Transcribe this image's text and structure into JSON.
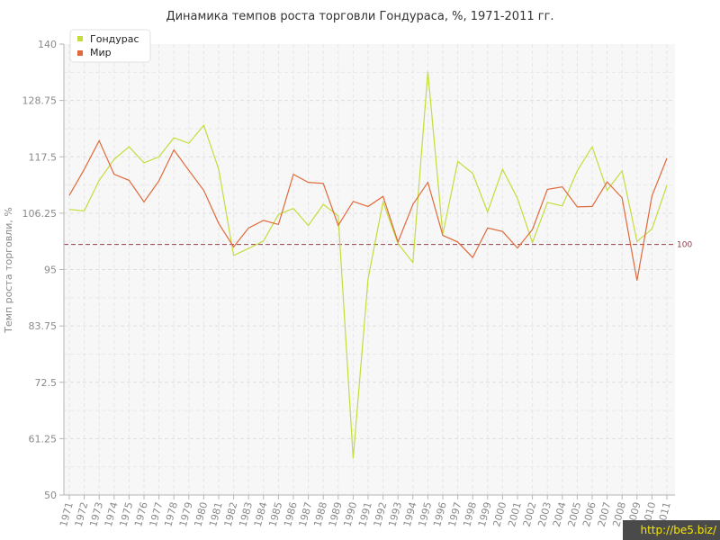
{
  "chart_data": {
    "type": "line",
    "title": "Динамика темпов роста торговли Гондураса, %, 1971-2011 гг.",
    "xlabel": "",
    "ylabel": "Темп роста торговли, %",
    "ylim": [
      50,
      140
    ],
    "y_ticks": [
      "50",
      "61.25",
      "72.5",
      "83.75",
      "95",
      "106.25",
      "117.5",
      "128.75",
      "140"
    ],
    "grid": true,
    "legend_position": "top-left",
    "reference_line": {
      "value": 100,
      "label": "100",
      "color": "#a33a4a"
    },
    "categories": [
      "1971",
      "1972",
      "1973",
      "1974",
      "1975",
      "1976",
      "1977",
      "1978",
      "1979",
      "1980",
      "1981",
      "1982",
      "1983",
      "1984",
      "1985",
      "1986",
      "1987",
      "1988",
      "1989",
      "1990",
      "1991",
      "1992",
      "1993",
      "1994",
      "1995",
      "1996",
      "1997",
      "1998",
      "1999",
      "2000",
      "2001",
      "2002",
      "2003",
      "2004",
      "2005",
      "2006",
      "2007",
      "2008",
      "2009",
      "2010",
      "2011"
    ],
    "series": [
      {
        "name": "Гондурас",
        "color": "#c5dc3c",
        "values": [
          107,
          106.7,
          112.8,
          117,
          119.5,
          116.3,
          117.5,
          121.3,
          120.2,
          123.8,
          115,
          97.8,
          99.2,
          100.7,
          106,
          107.2,
          103.8,
          108,
          105.7,
          57.3,
          93.2,
          108.5,
          100.2,
          96.4,
          134.5,
          102,
          116.6,
          114.2,
          106.5,
          115,
          109.2,
          100.4,
          108.4,
          107.7,
          114.7,
          119.5,
          110.8,
          114.7,
          100.6,
          103.1,
          111.8
        ]
      },
      {
        "name": "Мир",
        "color": "#e0693a",
        "values": [
          109.8,
          115,
          120.7,
          114,
          112.8,
          108.5,
          112.7,
          118.9,
          114.8,
          110.8,
          104.2,
          99.5,
          103.3,
          104.8,
          104,
          114,
          112.4,
          112.2,
          103.8,
          108.6,
          107.6,
          109.6,
          100.5,
          108,
          112.4,
          101.8,
          100.5,
          97.4,
          103.3,
          102.6,
          99.3,
          103,
          111,
          111.5,
          107.5,
          107.6,
          112.5,
          109.3,
          92.8,
          109.7,
          117.2
        ]
      }
    ]
  },
  "watermark": "http://be5.biz/"
}
